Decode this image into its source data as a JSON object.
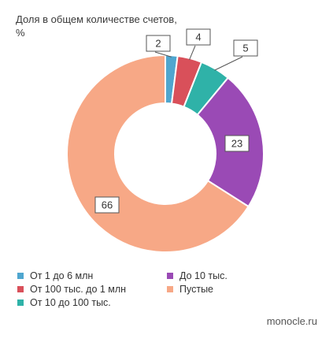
{
  "title_line1": "Доля в общем количестве счетов,",
  "title_line2": "%",
  "source": "monocle.ru",
  "chart_data": {
    "type": "pie",
    "subtype": "donut",
    "title": "Доля в общем количестве счетов, %",
    "unit": "%",
    "slices": [
      {
        "label": "От 1 до 6 млн",
        "value": 2,
        "color": "#4fa6cf"
      },
      {
        "label": "От 100 тыс. до 1 млн",
        "value": 4,
        "color": "#d9505a"
      },
      {
        "label": "От 10 до 100 тыс.",
        "value": 5,
        "color": "#2fb2a8"
      },
      {
        "label": "До 10 тыс.",
        "value": 23,
        "color": "#9a4ab5"
      },
      {
        "label": "Пустые",
        "value": 66,
        "color": "#f7a886"
      }
    ],
    "legend_placement": "bottom"
  },
  "legend": [
    {
      "label": "От 1 до 6 млн",
      "color": "#4fa6cf"
    },
    {
      "label": "От 100 тыс. до 1 млн",
      "color": "#d9505a"
    },
    {
      "label": "От 10 до 100 тыс.",
      "color": "#2fb2a8"
    },
    {
      "label": "До 10 тыс.",
      "color": "#9a4ab5"
    },
    {
      "label": "Пустые",
      "color": "#f7a886"
    }
  ]
}
